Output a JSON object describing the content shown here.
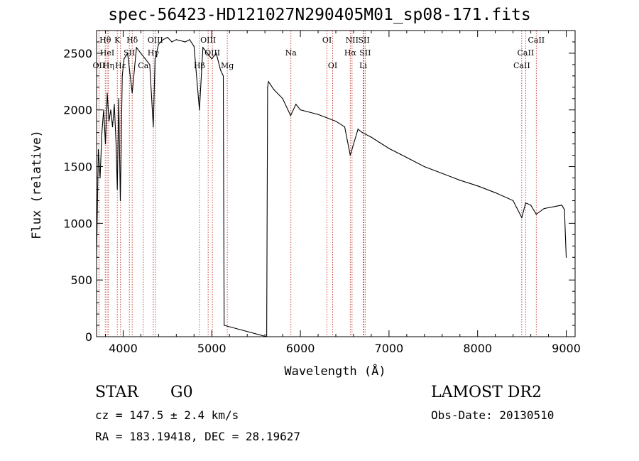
{
  "chart_data": {
    "type": "line",
    "title": "spec-56423-HD121027N290405M01_sp08-171.fits",
    "xlabel": "Wavelength (Å)",
    "ylabel": "Flux (relative)",
    "xlim": [
      3700,
      9100
    ],
    "ylim": [
      0,
      2700
    ],
    "xticks": [
      4000,
      5000,
      6000,
      7000,
      8000,
      9000
    ],
    "yticks": [
      0,
      500,
      1000,
      1500,
      2000,
      2500
    ],
    "grid": false,
    "series": [
      {
        "name": "flux",
        "x": [
          3700,
          3720,
          3740,
          3760,
          3780,
          3800,
          3820,
          3840,
          3860,
          3880,
          3900,
          3920,
          3934,
          3950,
          3968,
          3990,
          4010,
          4050,
          4102,
          4150,
          4200,
          4250,
          4300,
          4340,
          4360,
          4400,
          4450,
          4500,
          4550,
          4600,
          4650,
          4700,
          4750,
          4800,
          4861,
          4900,
          4950,
          5000,
          5050,
          5100,
          5130,
          5140,
          5620,
          5630,
          5640,
          5700,
          5800,
          5890,
          5950,
          6000,
          6100,
          6200,
          6300,
          6400,
          6500,
          6563,
          6650,
          6700,
          6800,
          7000,
          7200,
          7400,
          7600,
          7800,
          8000,
          8200,
          8400,
          8498,
          8542,
          8600,
          8662,
          8750,
          8950,
          8980,
          9000
        ],
        "values": [
          700,
          1650,
          1400,
          1800,
          2000,
          1700,
          2150,
          1900,
          2000,
          1850,
          2050,
          1700,
          1300,
          2100,
          1200,
          2300,
          2450,
          2500,
          2150,
          2550,
          2500,
          2450,
          2400,
          1850,
          2450,
          2580,
          2620,
          2640,
          2600,
          2620,
          2610,
          2600,
          2620,
          2560,
          2000,
          2550,
          2500,
          2450,
          2500,
          2350,
          2300,
          100,
          0,
          2200,
          2250,
          2180,
          2100,
          1950,
          2050,
          2000,
          1980,
          1960,
          1930,
          1900,
          1850,
          1600,
          1830,
          1800,
          1760,
          1660,
          1580,
          1500,
          1440,
          1380,
          1330,
          1270,
          1200,
          1050,
          1180,
          1160,
          1080,
          1130,
          1160,
          1120,
          700
        ]
      }
    ],
    "lines": [
      {
        "label": "Hθ",
        "x": 3798,
        "row": 0
      },
      {
        "label": "OII",
        "x": 3727,
        "row": 2
      },
      {
        "label": "HeI",
        "x": 3820,
        "row": 1
      },
      {
        "label": "Hη",
        "x": 3835,
        "row": 2
      },
      {
        "label": "K",
        "x": 3934,
        "row": 0
      },
      {
        "label": "SII",
        "x": 4070,
        "row": 1
      },
      {
        "label": "Hε",
        "x": 3970,
        "row": 2
      },
      {
        "label": "Hδ",
        "x": 4102,
        "row": 0
      },
      {
        "label": "OIII",
        "x": 4363,
        "row": 0
      },
      {
        "label": "Hγ",
        "x": 4340,
        "row": 1
      },
      {
        "label": "Ca",
        "x": 4227,
        "row": 2
      },
      {
        "label": "OIII",
        "x": 4959,
        "row": 0
      },
      {
        "label": "OIII",
        "x": 5007,
        "row": 1
      },
      {
        "label": "Hβ",
        "x": 4861,
        "row": 2
      },
      {
        "label": "Mg",
        "x": 5175,
        "row": 2
      },
      {
        "label": "Na",
        "x": 5893,
        "row": 1
      },
      {
        "label": "OI",
        "x": 6300,
        "row": 0
      },
      {
        "label": "OI",
        "x": 6364,
        "row": 2
      },
      {
        "label": "NII",
        "x": 6583,
        "row": 0
      },
      {
        "label": "Hα",
        "x": 6563,
        "row": 1
      },
      {
        "label": "SII",
        "x": 6717,
        "row": 0
      },
      {
        "label": "SII",
        "x": 6731,
        "row": 1
      },
      {
        "label": "Li",
        "x": 6708,
        "row": 2
      },
      {
        "label": "CaII",
        "x": 8662,
        "row": 0
      },
      {
        "label": "CaII",
        "x": 8542,
        "row": 1
      },
      {
        "label": "CaII",
        "x": 8498,
        "row": 2
      }
    ]
  },
  "info": {
    "object_class": "STAR",
    "subclass": "G0",
    "survey": "LAMOST DR2",
    "cz": "cz = 147.5 ± 2.4 km/s",
    "obs_date": "Obs-Date: 20130510",
    "coords": "RA = 183.19418, DEC =  28.19627"
  }
}
